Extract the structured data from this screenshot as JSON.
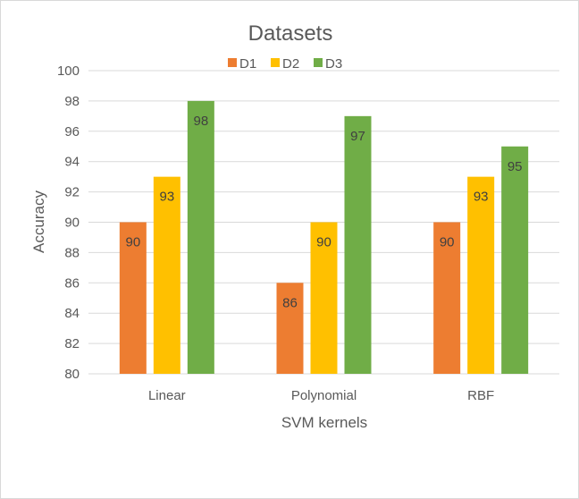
{
  "chart_data": {
    "type": "bar",
    "title": "Datasets",
    "xlabel": "SVM kernels",
    "ylabel": "Accuracy",
    "categories": [
      "Linear",
      "Polynomial",
      "RBF"
    ],
    "series": [
      {
        "name": "D1",
        "color": "#ED7D31",
        "values": [
          90,
          86,
          90
        ]
      },
      {
        "name": "D2",
        "color": "#FFC000",
        "values": [
          93,
          90,
          93
        ]
      },
      {
        "name": "D3",
        "color": "#70AD47",
        "values": [
          98,
          97,
          95
        ]
      }
    ],
    "ylim": [
      80,
      100
    ],
    "yticks": [
      80,
      82,
      84,
      86,
      88,
      90,
      92,
      94,
      96,
      98,
      100
    ],
    "grid": true,
    "legend_position": "top",
    "data_labels": true
  }
}
